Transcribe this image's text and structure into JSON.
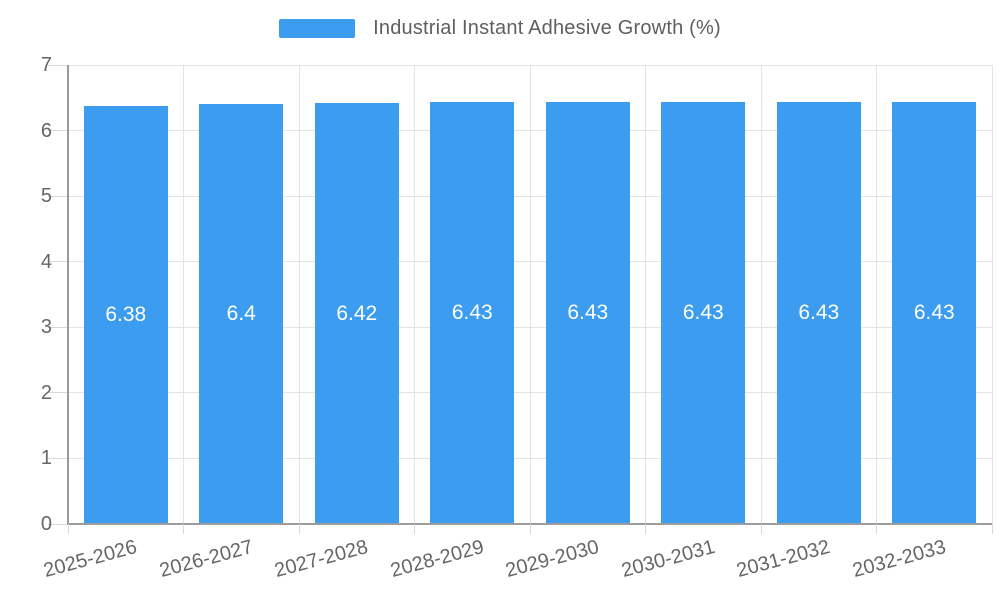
{
  "legend": {
    "label": "Industrial Instant Adhesive Growth (%)"
  },
  "chart_data": {
    "type": "bar",
    "title": "Industrial Instant Adhesive Growth (%)",
    "categories": [
      "2025-2026",
      "2026-2027",
      "2027-2028",
      "2028-2029",
      "2029-2030",
      "2030-2031",
      "2031-2032",
      "2032-2033"
    ],
    "values": [
      6.38,
      6.4,
      6.42,
      6.43,
      6.43,
      6.43,
      6.43,
      6.43
    ],
    "value_labels": [
      "6.38",
      "6.4",
      "6.42",
      "6.43",
      "6.43",
      "6.43",
      "6.43",
      "6.43"
    ],
    "xlabel": "",
    "ylabel": "",
    "ylim": [
      0,
      7
    ],
    "yticks": [
      0,
      1,
      2,
      3,
      4,
      5,
      6,
      7
    ],
    "grid": true,
    "legend_position": "top",
    "bar_color": "#3b9cf0",
    "value_label_color": "#ffffff",
    "tick_text_color": "#666666",
    "grid_color": "#e4e4e4",
    "axis_color": "#999999"
  }
}
